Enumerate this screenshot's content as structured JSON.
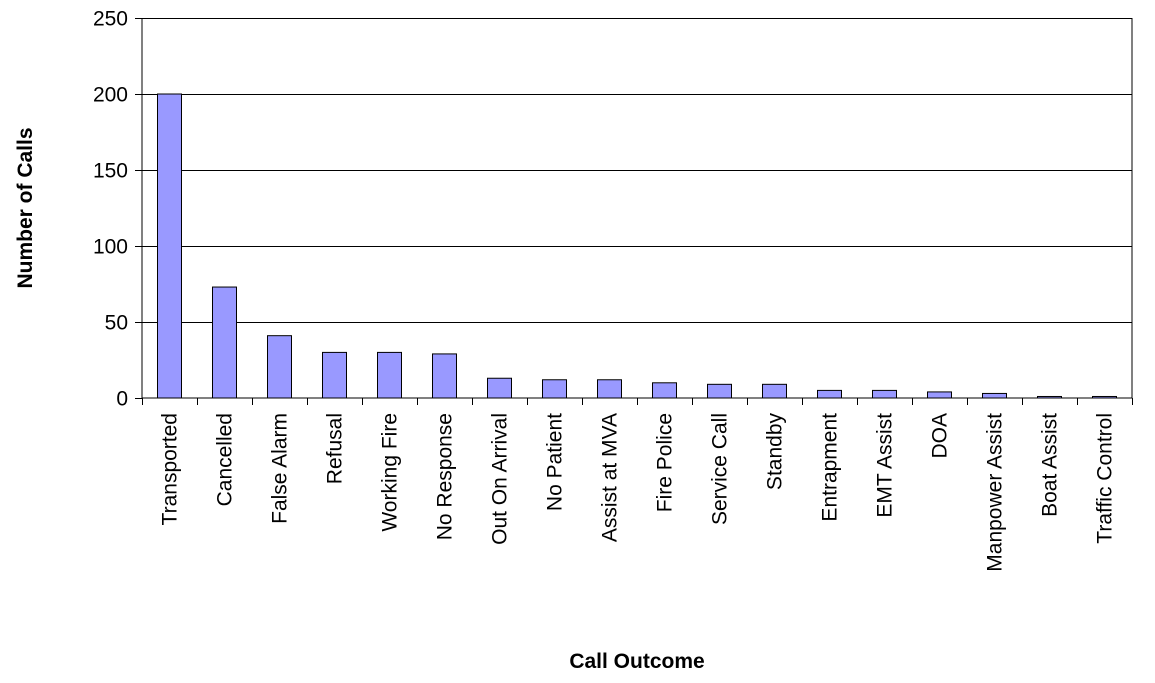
{
  "chart_data": {
    "type": "bar",
    "title": "",
    "xlabel": "Call Outcome",
    "ylabel": "Number of Calls",
    "ylim": [
      0,
      250
    ],
    "yticks": [
      0,
      50,
      100,
      150,
      200,
      250
    ],
    "grid": true,
    "legend": "none",
    "bar_color": "#9999ff",
    "categories": [
      "Transported",
      "Cancelled",
      "False Alarm",
      "Refusal",
      "Working Fire",
      "No Response",
      "Out On Arrival",
      "No Patient",
      "Assist at MVA",
      "Fire Police",
      "Service Call",
      "Standby",
      "Entrapment",
      "EMT Assist",
      "DOA",
      "Manpower Assist",
      "Boat Assist",
      "Traffic Control"
    ],
    "values": [
      200,
      73,
      41,
      30,
      30,
      29,
      13,
      12,
      12,
      10,
      9,
      9,
      5,
      5,
      4,
      3,
      1,
      1
    ]
  }
}
